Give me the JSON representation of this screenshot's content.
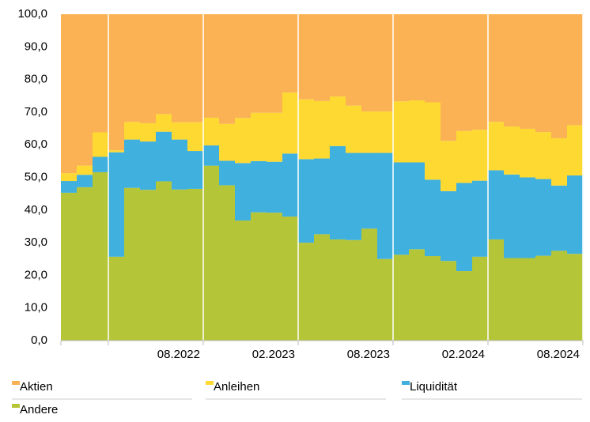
{
  "chart_data": {
    "type": "stacked-area-step",
    "categories": [
      null,
      null,
      null,
      null,
      null,
      null,
      null,
      null,
      "08.2022",
      null,
      null,
      null,
      null,
      null,
      "02.2023",
      null,
      null,
      null,
      null,
      null,
      "08.2023",
      null,
      null,
      null,
      null,
      null,
      "02.2024",
      null,
      null,
      null,
      null,
      null,
      "08.2024"
    ],
    "series": [
      {
        "name": "Aktien",
        "color": "#fbb255",
        "values": [
          48.7,
          46.4,
          36.2,
          41.7,
          33.0,
          33.4,
          30.6,
          33.1,
          33.1,
          31.7,
          33.6,
          31.8,
          30.2,
          30.2,
          24.0,
          26.1,
          26.6,
          25.2,
          28.0,
          29.8,
          29.8,
          26.7,
          26.4,
          27.0,
          38.8,
          35.8,
          35.4,
          33.0,
          34.4,
          35.1,
          36.1,
          38.0,
          34.0
        ]
      },
      {
        "name": "Anleihen",
        "color": "#fdd932",
        "values": [
          2.4,
          2.8,
          7.5,
          0.6,
          5.4,
          5.6,
          5.4,
          5.3,
          8.8,
          8.5,
          11.3,
          13.8,
          14.8,
          15.0,
          18.7,
          18.3,
          17.6,
          15.2,
          14.5,
          12.7,
          12.7,
          18.7,
          19.0,
          23.7,
          15.4,
          15.9,
          15.6,
          14.8,
          14.7,
          14.9,
          14.4,
          14.5,
          15.4
        ]
      },
      {
        "name": "Liquidität",
        "color": "#40b0de",
        "values": [
          3.6,
          3.8,
          4.7,
          32.0,
          14.8,
          14.8,
          15.2,
          15.3,
          11.6,
          6.2,
          7.5,
          17.6,
          15.7,
          15.6,
          19.3,
          25.6,
          23.2,
          28.6,
          26.7,
          23.2,
          32.5,
          28.3,
          26.6,
          23.4,
          21.4,
          27.0,
          23.3,
          21.2,
          25.6,
          24.7,
          23.5,
          20.0,
          24.0
        ]
      },
      {
        "name": "Andere",
        "color": "#b5c538",
        "values": [
          45.3,
          47.0,
          51.6,
          25.7,
          46.8,
          46.2,
          48.8,
          46.3,
          46.5,
          53.6,
          47.6,
          36.8,
          39.3,
          39.2,
          38.0,
          30.0,
          32.6,
          31.0,
          30.8,
          34.3,
          25.0,
          26.3,
          28.0,
          25.9,
          24.4,
          21.3,
          25.7,
          31.0,
          25.3,
          25.3,
          26.0,
          27.5,
          26.6
        ]
      }
    ],
    "ylim": [
      0,
      100
    ],
    "yticks": [
      {
        "value": 0,
        "label": "0,0"
      },
      {
        "value": 10,
        "label": "10,0"
      },
      {
        "value": 20,
        "label": "20,0"
      },
      {
        "value": 30,
        "label": "30,0"
      },
      {
        "value": 40,
        "label": "40,0"
      },
      {
        "value": 50,
        "label": "50,0"
      },
      {
        "value": 60,
        "label": "60,0"
      },
      {
        "value": 70,
        "label": "70,0"
      },
      {
        "value": 80,
        "label": "80,0"
      },
      {
        "value": 90,
        "label": "90,0"
      },
      {
        "value": 100,
        "label": "100,0"
      }
    ]
  }
}
